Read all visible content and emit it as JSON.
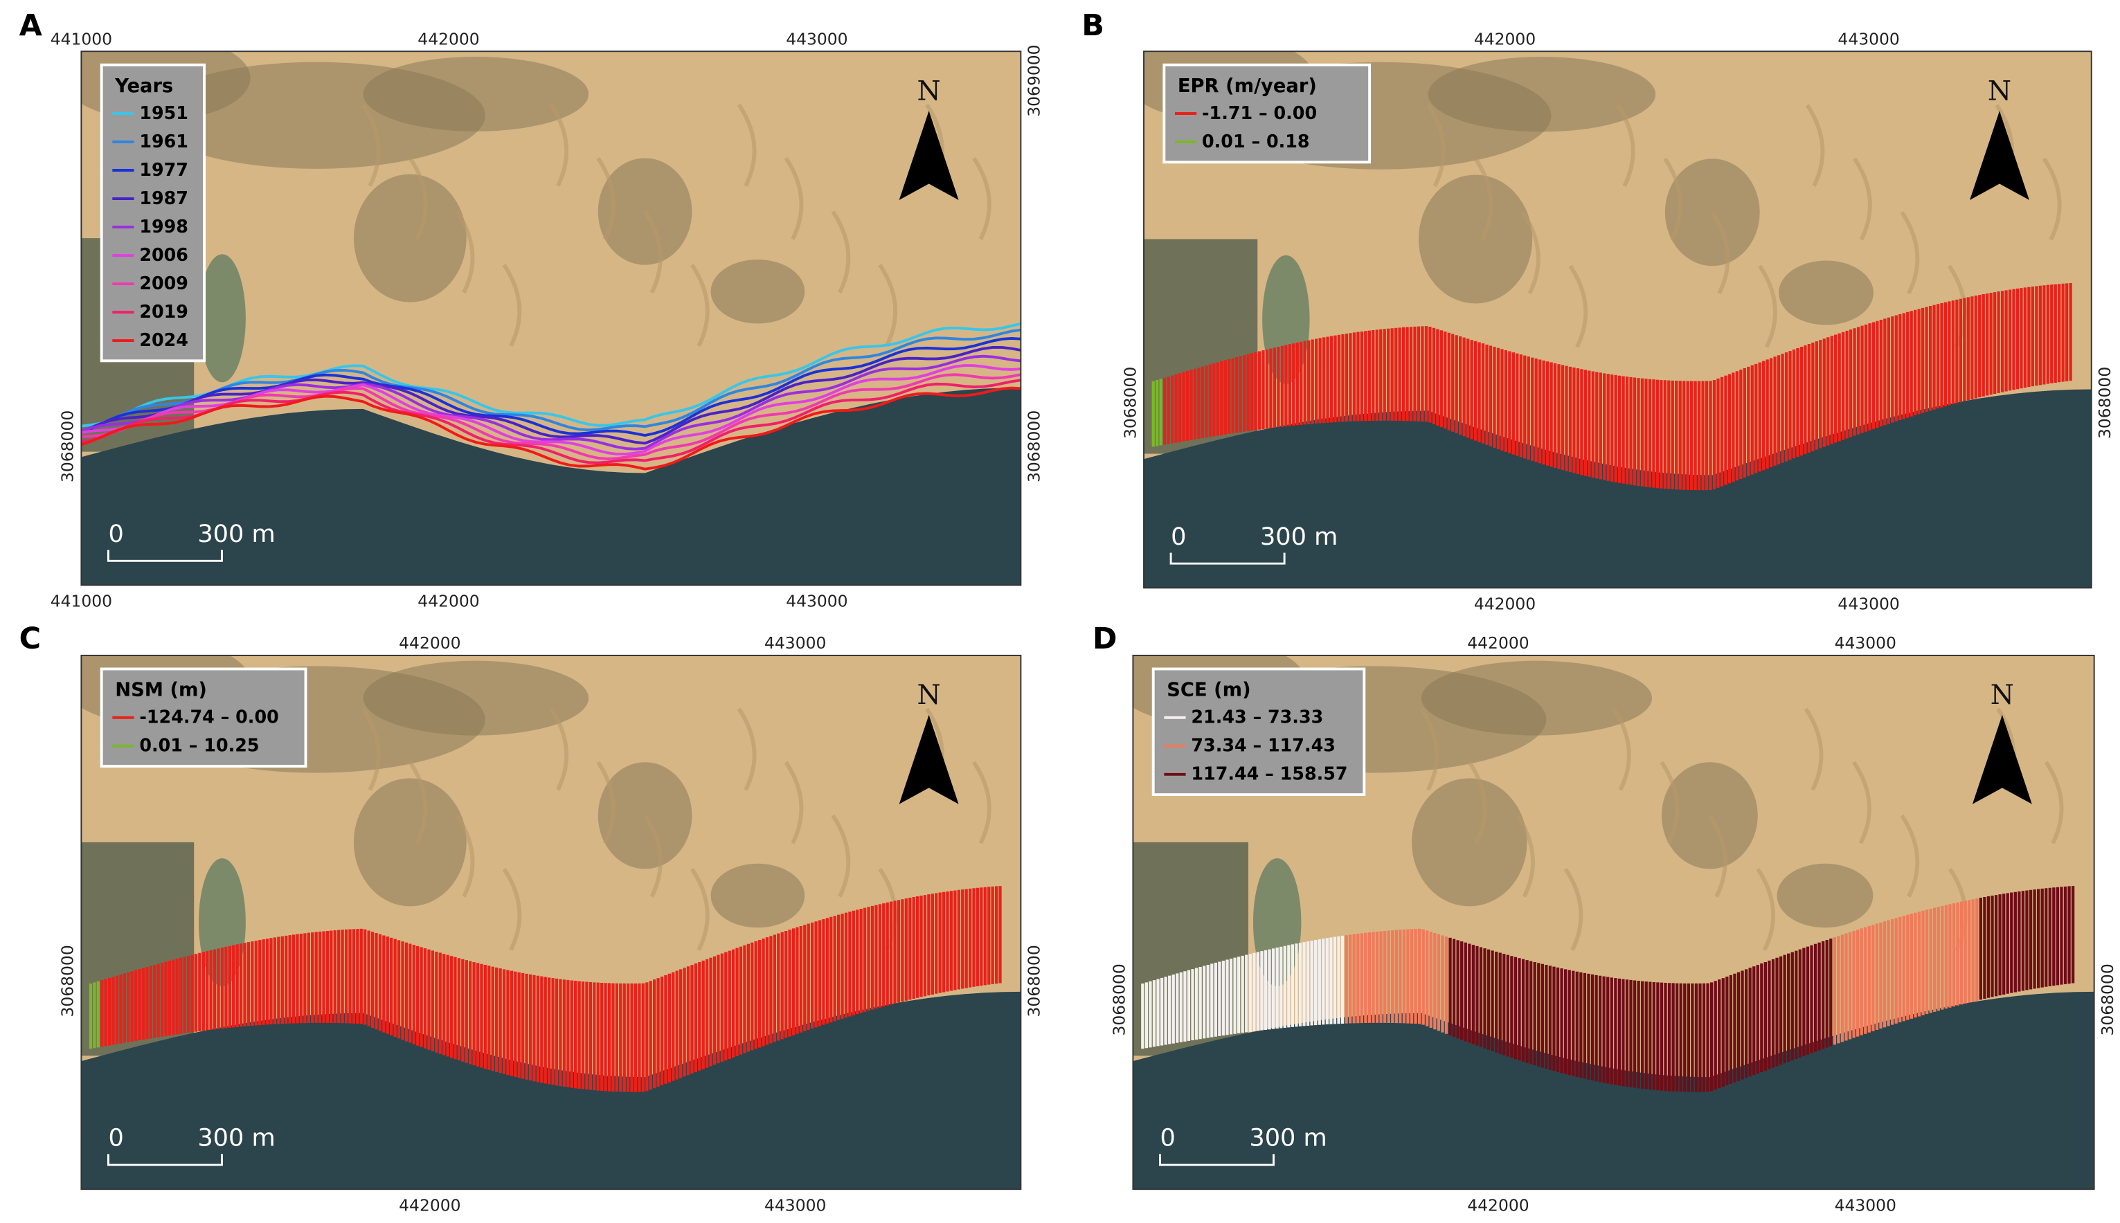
{
  "panels": [
    {
      "label": "A",
      "top_ticks": [
        "441000",
        "442000",
        "443000"
      ],
      "bottom_ticks": [
        "441000",
        "442000",
        "443000"
      ],
      "left_ticks": [
        "3068000"
      ],
      "right_ticks": [
        "3069000",
        "3068000"
      ],
      "legend": {
        "title": "Years",
        "entries": [
          {
            "label": "1951",
            "color": "#39c6e8"
          },
          {
            "label": "1961",
            "color": "#2f86e0"
          },
          {
            "label": "1977",
            "color": "#1b32d8"
          },
          {
            "label": "1987",
            "color": "#4a22c8"
          },
          {
            "label": "1998",
            "color": "#9a2ee0"
          },
          {
            "label": "2006",
            "color": "#e040e0"
          },
          {
            "label": "2009",
            "color": "#f03ab0"
          },
          {
            "label": "2019",
            "color": "#f0206a"
          },
          {
            "label": "2024",
            "color": "#f01a1a"
          }
        ]
      },
      "scale": [
        "0",
        "300 m"
      ],
      "north": "N"
    },
    {
      "label": "B",
      "top_ticks": [
        "442000",
        "443000"
      ],
      "bottom_ticks": [
        "442000",
        "443000"
      ],
      "left_ticks": [
        "3068000"
      ],
      "right_ticks": [
        "3068000"
      ],
      "legend": {
        "title": "EPR (m/year)",
        "entries": [
          {
            "label": "-1.71 – 0.00",
            "color": "#e8221a"
          },
          {
            "label": "0.01 – 0.18",
            "color": "#7ab828"
          }
        ]
      },
      "scale": [
        "0",
        "300 m"
      ],
      "north": "N"
    },
    {
      "label": "C",
      "top_ticks": [
        "442000",
        "443000"
      ],
      "bottom_ticks": [
        "442000",
        "443000"
      ],
      "left_ticks": [
        "3068000"
      ],
      "right_ticks": [
        "3068000"
      ],
      "legend": {
        "title": "NSM (m)",
        "entries": [
          {
            "label": "-124.74  – 0.00",
            "color": "#e8221a"
          },
          {
            "label": "0.01 – 10.25",
            "color": "#7ab828"
          }
        ]
      },
      "scale": [
        "0",
        "300 m"
      ],
      "north": "N"
    },
    {
      "label": "D",
      "top_ticks": [
        "442000",
        "443000"
      ],
      "bottom_ticks": [
        "442000",
        "443000"
      ],
      "left_ticks": [
        "3068000"
      ],
      "right_ticks": [
        "3068000"
      ],
      "legend": {
        "title": "SCE (m)",
        "entries": [
          {
            "label": "21.43 – 73.33",
            "color": "#f4f0ee"
          },
          {
            "label": "73.34 – 117.43",
            "color": "#f07a5a"
          },
          {
            "label": "117.44 – 158.57",
            "color": "#6e0d16"
          }
        ]
      },
      "scale": [
        "0",
        "300 m"
      ],
      "north": "N"
    }
  ]
}
